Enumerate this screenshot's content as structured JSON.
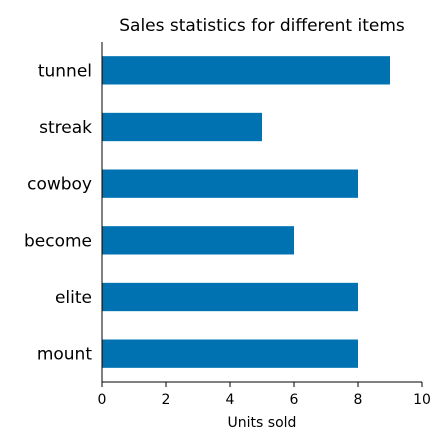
{
  "chart_data": {
    "type": "bar",
    "orientation": "horizontal",
    "title": "Sales statistics for different items",
    "xlabel": "Units sold",
    "ylabel": "",
    "categories": [
      "tunnel",
      "streak",
      "cowboy",
      "become",
      "elite",
      "mount"
    ],
    "values": [
      9,
      5,
      8,
      6,
      8,
      8
    ],
    "xlim": [
      0,
      10
    ],
    "xticks": [
      0,
      2,
      4,
      6,
      8,
      10
    ],
    "grid": false,
    "bar_color": "#0072b2"
  }
}
